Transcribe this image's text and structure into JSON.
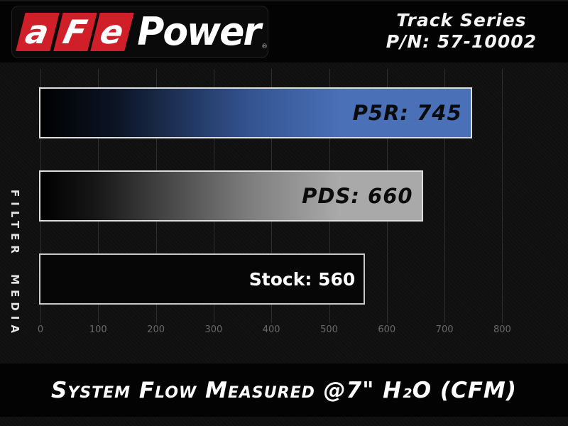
{
  "brand": {
    "logo_segments": [
      "a",
      "F",
      "e"
    ],
    "logo_word": "Power",
    "trademark": "®",
    "series_line1": "Track Series",
    "series_line2": "P/N: 57-10002"
  },
  "chart_data": {
    "type": "bar",
    "orientation": "horizontal",
    "title": "System Flow Measured @7\" H₂O (CFM)",
    "ylabel": "FILTER MEDIA",
    "categories": [
      "P5R",
      "PDS",
      "Stock"
    ],
    "values": [
      745,
      660,
      560
    ],
    "bars": [
      {
        "category": "P5R",
        "value": 745,
        "label": "P5R: 745",
        "style": "blue",
        "label_style": "techno"
      },
      {
        "category": "PDS",
        "value": 660,
        "label": "PDS: 660",
        "style": "silver",
        "label_style": "techno"
      },
      {
        "category": "Stock",
        "value": 560,
        "label": "Stock: 560",
        "style": "black",
        "label_style": "plain"
      }
    ],
    "xlim": [
      0,
      800
    ],
    "x_ticks": [
      0,
      100,
      200,
      300,
      400,
      500,
      600,
      700,
      800
    ],
    "grid": true,
    "legend": "none"
  },
  "colors": {
    "logo_red": "#d01f28",
    "bar_blue": "#4a70b8",
    "bar_silver": "#a9a9a9",
    "grid": "#2e2e2e",
    "tick_text": "#696969"
  }
}
